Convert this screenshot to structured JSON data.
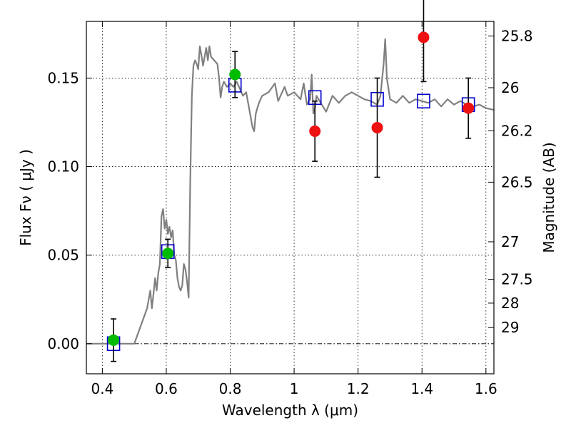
{
  "chart_data": {
    "type": "scatter",
    "xlabel": "Wavelength  λ (μm)",
    "ylabel": "Flux  Fν  ( μJy )",
    "y2label": "Magnitude (AB)",
    "xlim": [
      0.35,
      1.625
    ],
    "ylim": [
      -0.017,
      0.182
    ],
    "grid": true,
    "legend": "none",
    "x_ticks": [
      {
        "value": 0.4,
        "label": "0.4"
      },
      {
        "value": 0.6,
        "label": "0.6"
      },
      {
        "value": 0.8,
        "label": "0.8"
      },
      {
        "value": 1.0,
        "label": "1"
      },
      {
        "value": 1.2,
        "label": "1.2"
      },
      {
        "value": 1.4,
        "label": "1.4"
      },
      {
        "value": 1.6,
        "label": "1.6"
      }
    ],
    "y_ticks": [
      {
        "value": 0.0,
        "label": "0.00"
      },
      {
        "value": 0.05,
        "label": "0.05"
      },
      {
        "value": 0.1,
        "label": "0.10"
      },
      {
        "value": 0.15,
        "label": "0.15"
      }
    ],
    "y2_ticks": [
      {
        "mag": 25.8,
        "label": "25.8"
      },
      {
        "mag": 26,
        "label": "26"
      },
      {
        "mag": 26.2,
        "label": "26.2"
      },
      {
        "mag": 26.5,
        "label": "26.5"
      },
      {
        "mag": 27,
        "label": "27"
      },
      {
        "mag": 27.5,
        "label": "27.5"
      },
      {
        "mag": 28,
        "label": "28"
      },
      {
        "mag": 29,
        "label": "29"
      }
    ],
    "zero_line": 0.0,
    "colors": {
      "sed": "#808080",
      "model_flux": "#0000cc",
      "detection": "#00bb00",
      "measurement": "#ee1111",
      "errorbar": "#000000"
    },
    "sed_curve": [
      [
        0.35,
        0.0
      ],
      [
        0.5,
        0.0
      ],
      [
        0.52,
        0.01
      ],
      [
        0.54,
        0.02
      ],
      [
        0.55,
        0.03
      ],
      [
        0.555,
        0.02
      ],
      [
        0.56,
        0.028
      ],
      [
        0.565,
        0.037
      ],
      [
        0.57,
        0.03
      ],
      [
        0.575,
        0.04
      ],
      [
        0.58,
        0.045
      ],
      [
        0.585,
        0.072
      ],
      [
        0.59,
        0.076
      ],
      [
        0.595,
        0.065
      ],
      [
        0.6,
        0.07
      ],
      [
        0.605,
        0.062
      ],
      [
        0.61,
        0.066
      ],
      [
        0.615,
        0.06
      ],
      [
        0.62,
        0.064
      ],
      [
        0.625,
        0.05
      ],
      [
        0.63,
        0.047
      ],
      [
        0.635,
        0.037
      ],
      [
        0.64,
        0.032
      ],
      [
        0.645,
        0.03
      ],
      [
        0.65,
        0.033
      ],
      [
        0.655,
        0.045
      ],
      [
        0.66,
        0.042
      ],
      [
        0.665,
        0.035
      ],
      [
        0.67,
        0.026
      ],
      [
        0.675,
        0.09
      ],
      [
        0.68,
        0.14
      ],
      [
        0.685,
        0.157
      ],
      [
        0.69,
        0.16
      ],
      [
        0.695,
        0.158
      ],
      [
        0.7,
        0.155
      ],
      [
        0.705,
        0.168
      ],
      [
        0.71,
        0.163
      ],
      [
        0.715,
        0.157
      ],
      [
        0.72,
        0.162
      ],
      [
        0.725,
        0.167
      ],
      [
        0.73,
        0.16
      ],
      [
        0.735,
        0.168
      ],
      [
        0.74,
        0.162
      ],
      [
        0.75,
        0.16
      ],
      [
        0.76,
        0.158
      ],
      [
        0.765,
        0.15
      ],
      [
        0.77,
        0.139
      ],
      [
        0.775,
        0.145
      ],
      [
        0.78,
        0.148
      ],
      [
        0.79,
        0.145
      ],
      [
        0.8,
        0.147
      ],
      [
        0.81,
        0.145
      ],
      [
        0.82,
        0.148
      ],
      [
        0.83,
        0.144
      ],
      [
        0.84,
        0.14
      ],
      [
        0.85,
        0.142
      ],
      [
        0.86,
        0.132
      ],
      [
        0.87,
        0.122
      ],
      [
        0.875,
        0.12
      ],
      [
        0.88,
        0.13
      ],
      [
        0.89,
        0.136
      ],
      [
        0.9,
        0.14
      ],
      [
        0.92,
        0.142
      ],
      [
        0.94,
        0.147
      ],
      [
        0.95,
        0.137
      ],
      [
        0.97,
        0.145
      ],
      [
        0.98,
        0.14
      ],
      [
        1.0,
        0.142
      ],
      [
        1.02,
        0.138
      ],
      [
        1.03,
        0.147
      ],
      [
        1.04,
        0.135
      ],
      [
        1.05,
        0.138
      ],
      [
        1.055,
        0.152
      ],
      [
        1.06,
        0.13
      ],
      [
        1.065,
        0.133
      ],
      [
        1.07,
        0.14
      ],
      [
        1.08,
        0.137
      ],
      [
        1.1,
        0.131
      ],
      [
        1.12,
        0.14
      ],
      [
        1.14,
        0.136
      ],
      [
        1.16,
        0.14
      ],
      [
        1.18,
        0.142
      ],
      [
        1.2,
        0.14
      ],
      [
        1.22,
        0.138
      ],
      [
        1.24,
        0.137
      ],
      [
        1.26,
        0.135
      ],
      [
        1.27,
        0.14
      ],
      [
        1.28,
        0.158
      ],
      [
        1.285,
        0.172
      ],
      [
        1.29,
        0.15
      ],
      [
        1.3,
        0.138
      ],
      [
        1.32,
        0.136
      ],
      [
        1.34,
        0.14
      ],
      [
        1.36,
        0.136
      ],
      [
        1.38,
        0.138
      ],
      [
        1.4,
        0.137
      ],
      [
        1.42,
        0.136
      ],
      [
        1.44,
        0.138
      ],
      [
        1.46,
        0.134
      ],
      [
        1.48,
        0.138
      ],
      [
        1.5,
        0.135
      ],
      [
        1.52,
        0.137
      ],
      [
        1.54,
        0.135
      ],
      [
        1.56,
        0.134
      ],
      [
        1.58,
        0.135
      ],
      [
        1.6,
        0.133
      ],
      [
        1.625,
        0.132
      ]
    ],
    "model_flux": [
      {
        "x": 0.435,
        "y": 0.0
      },
      {
        "x": 0.605,
        "y": 0.052
      },
      {
        "x": 0.815,
        "y": 0.146
      },
      {
        "x": 1.065,
        "y": 0.139
      },
      {
        "x": 1.26,
        "y": 0.138
      },
      {
        "x": 1.405,
        "y": 0.137
      },
      {
        "x": 1.545,
        "y": 0.135
      }
    ],
    "observed": [
      {
        "x": 0.435,
        "y": 0.002,
        "err": 0.012,
        "kind": "detection"
      },
      {
        "x": 0.605,
        "y": 0.051,
        "err": 0.008,
        "kind": "detection"
      },
      {
        "x": 0.815,
        "y": 0.152,
        "err": 0.013,
        "kind": "detection"
      },
      {
        "x": 1.065,
        "y": 0.12,
        "err": 0.017,
        "kind": "measurement"
      },
      {
        "x": 1.26,
        "y": 0.122,
        "err": 0.028,
        "kind": "measurement"
      },
      {
        "x": 1.405,
        "y": 0.173,
        "err": 0.025,
        "kind": "measurement"
      },
      {
        "x": 1.545,
        "y": 0.133,
        "err": 0.017,
        "kind": "measurement"
      }
    ]
  }
}
